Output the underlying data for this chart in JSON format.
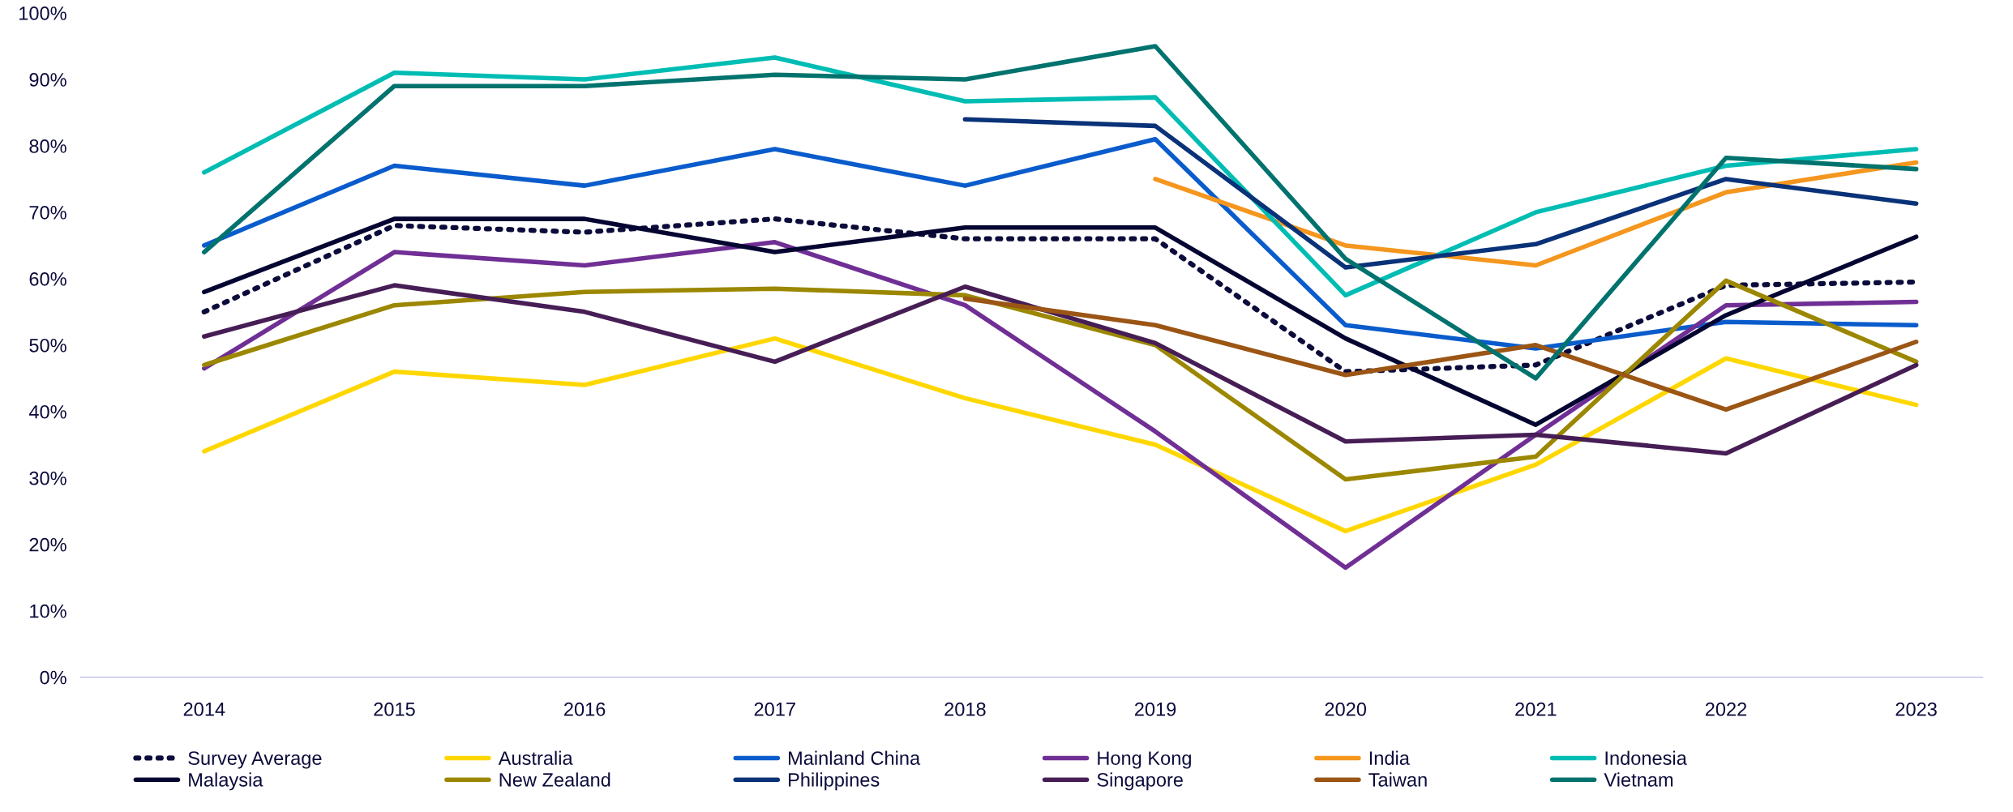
{
  "chart_data": {
    "type": "line",
    "categories": [
      "2014",
      "2015",
      "2016",
      "2017",
      "2018",
      "2019",
      "2020",
      "2021",
      "2022",
      "2023"
    ],
    "ylim": [
      0,
      100
    ],
    "yticks": [
      {
        "value": 0,
        "label": "0%"
      },
      {
        "value": 10,
        "label": "10%"
      },
      {
        "value": 20,
        "label": "20%"
      },
      {
        "value": 30,
        "label": "30%"
      },
      {
        "value": 40,
        "label": "40%"
      },
      {
        "value": 50,
        "label": "50%"
      },
      {
        "value": 60,
        "label": "60%"
      },
      {
        "value": 70,
        "label": "70%"
      },
      {
        "value": 80,
        "label": "80%"
      },
      {
        "value": 90,
        "label": "90%"
      },
      {
        "value": 100,
        "label": "100%"
      }
    ],
    "grid": false,
    "legend": "bottom",
    "marker": "none",
    "series": [
      {
        "name": "Survey Average",
        "color": "#0c0c3c",
        "line_style": "dotted",
        "values": [
          55,
          68,
          67,
          69,
          66,
          66,
          46,
          47,
          59,
          59.5
        ]
      },
      {
        "name": "Australia",
        "color": "#ffd700",
        "values": [
          34,
          46,
          44,
          51,
          42,
          35,
          22,
          32,
          48,
          41
        ]
      },
      {
        "name": "Mainland China",
        "color": "#0a5ccc",
        "values": [
          65,
          77,
          74,
          79.5,
          74,
          81,
          53,
          49.5,
          53.5,
          53
        ]
      },
      {
        "name": "Hong Kong",
        "color": "#702f95",
        "values": [
          46.5,
          64,
          62,
          65.5,
          56,
          37,
          16.5,
          36.5,
          56,
          56.5
        ]
      },
      {
        "name": "India",
        "color": "#f5961e",
        "values": [
          null,
          null,
          null,
          null,
          null,
          75,
          65,
          62,
          73,
          77.5
        ]
      },
      {
        "name": "Indonesia",
        "color": "#00bdb4",
        "values": [
          76,
          91,
          90,
          93.3,
          86.7,
          87.3,
          57.5,
          70,
          77,
          79.5
        ]
      },
      {
        "name": "Malaysia",
        "color": "#050532",
        "values": [
          58,
          69,
          69,
          64,
          67.7,
          67.7,
          51,
          38,
          54.5,
          66.3
        ]
      },
      {
        "name": "New Zealand",
        "color": "#9b8700",
        "values": [
          47,
          56,
          58,
          58.5,
          57.5,
          50,
          29.8,
          33.2,
          59.7,
          47.5
        ]
      },
      {
        "name": "Philippines",
        "color": "#0a3278",
        "values": [
          null,
          null,
          null,
          null,
          84,
          83,
          61.7,
          65.2,
          75,
          71.3
        ]
      },
      {
        "name": "Singapore",
        "color": "#461e55",
        "values": [
          51.3,
          59,
          55,
          47.5,
          58.8,
          50.3,
          35.5,
          36.5,
          33.7,
          47
        ]
      },
      {
        "name": "Taiwan",
        "color": "#9b5514",
        "values": [
          null,
          null,
          null,
          null,
          57,
          53,
          45.5,
          50,
          40.3,
          50.5
        ]
      },
      {
        "name": "Vietnam",
        "color": "#00736e",
        "values": [
          64,
          89,
          89,
          90.7,
          90,
          95,
          63,
          45,
          78.2,
          76.5
        ]
      }
    ]
  }
}
